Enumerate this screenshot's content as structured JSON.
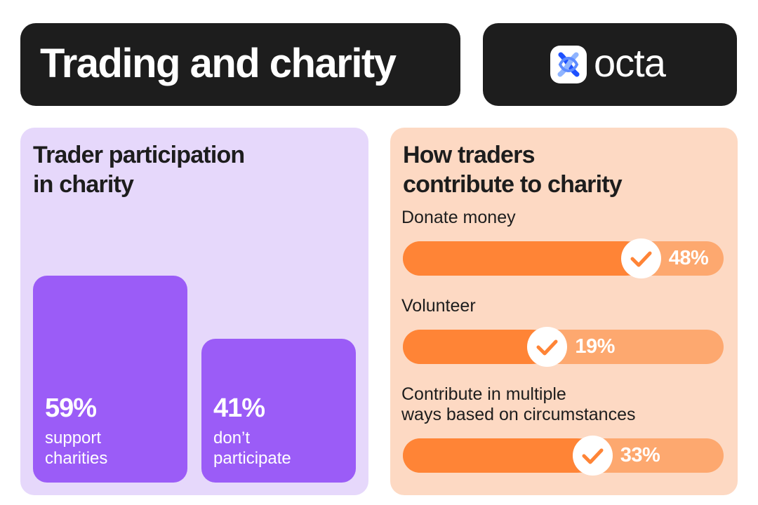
{
  "header": {
    "title": "Trading and charity",
    "logo_text": "octa",
    "logo_icon": "octa-logo-icon"
  },
  "colors": {
    "dark": "#1d1d1d",
    "purple_panel": "#e6d8fb",
    "purple_bar": "#9b5cf7",
    "peach_panel": "#fdd9c3",
    "orange_fill": "#ff8436",
    "orange_track": "#fda86f"
  },
  "left_panel": {
    "title": "Trader participation\nin charity"
  },
  "right_panel": {
    "title": "How traders\ncontribute to charity"
  },
  "chart_data": [
    {
      "type": "bar",
      "title": "Trader participation\nin charity",
      "categories": [
        "support\ncharities",
        "don’t\nparticipate"
      ],
      "values": [
        59,
        41
      ],
      "value_labels": [
        "59%",
        "41%"
      ],
      "ylim": [
        0,
        100
      ]
    },
    {
      "type": "bar",
      "orientation": "horizontal",
      "title": "How traders\ncontribute to charity",
      "categories": [
        "Donate money",
        "Volunteer",
        "Contribute in multiple\nways based on circumstances"
      ],
      "values": [
        48,
        19,
        33
      ],
      "value_labels": [
        "48%",
        "19%",
        "33%"
      ],
      "xlim": [
        0,
        100
      ]
    }
  ]
}
